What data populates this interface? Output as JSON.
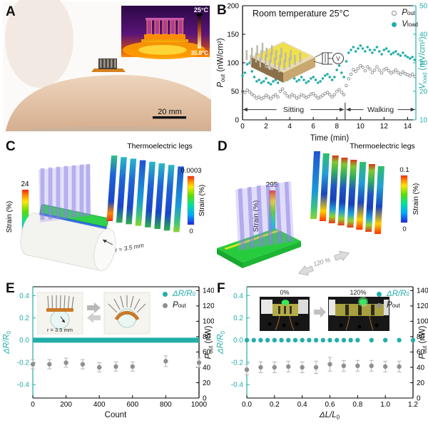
{
  "colors": {
    "accent_teal": "#23aea8",
    "marker_gray": "#8b8b8b",
    "skin": "#e3c3a8",
    "green_substrate": "#2fd04a",
    "purple_fins": "#8d84e8",
    "thermal_orange": "#ff9d00"
  },
  "panel_a": {
    "label": "A",
    "scale_bar": "20 mm",
    "inset": {
      "temp_max_label": "25°C",
      "temp_min_label": "35.8°C"
    }
  },
  "panel_b": {
    "label": "B",
    "title": "Room temperature 25°C",
    "xlabel": "Time (min)",
    "ylabel_left": {
      "sym": "P",
      "sub": "out",
      "unit": " (nW/cm²)"
    },
    "ylabel_right": {
      "sym": "V",
      "sub": "load",
      "unit": " (mV/cm²)"
    },
    "legend": [
      {
        "sym": "P",
        "sub": "out"
      },
      {
        "sym": "V",
        "sub": "load"
      }
    ],
    "inset": {
      "device_label": "Skin",
      "meter_label": "V"
    }
  },
  "panel_c": {
    "label": "C",
    "title": "Thermoelectric legs",
    "colorbar_left": {
      "max": "24",
      "min": "0",
      "label": "Strain (%)"
    },
    "colorbar_right": {
      "max": "0.0003",
      "min": "0",
      "label": "Strain (%)"
    },
    "annotation": "r = 3.5 mm"
  },
  "panel_d": {
    "label": "D",
    "title": "Thermoelectric legs",
    "colorbar_left": {
      "max": "295",
      "min": "0",
      "label": "Strain (%)"
    },
    "colorbar_right": {
      "max": "0.1",
      "min": "0",
      "label": "Strain (%)"
    },
    "annotation": "120 %"
  },
  "panel_e": {
    "label": "E",
    "xlabel": "Count",
    "ylabel_left": {
      "sym": "ΔR/R",
      "sub": "0"
    },
    "ylabel_right": {
      "sym": "P",
      "sub": "out",
      "unit": " (nW)"
    },
    "legend": [
      {
        "sym": "ΔR/R",
        "sub": "0"
      },
      {
        "sym": "P",
        "sub": "out"
      }
    ],
    "inset": {
      "radius_label": "r = 3.5 mm"
    }
  },
  "panel_f": {
    "label": "F",
    "xlabel": {
      "sym": "ΔL/L",
      "sub": "0"
    },
    "ylabel_left": {
      "sym": "ΔR/R",
      "sub": "0"
    },
    "ylabel_right": {
      "sym": "P",
      "sub": "out",
      "unit": " (nW)"
    },
    "legend": [
      {
        "sym": "ΔR/R",
        "sub": "0"
      },
      {
        "sym": "P",
        "sub": "out"
      }
    ],
    "inset": {
      "left_label": "0%",
      "right_label": "120%"
    }
  },
  "chart_data": [
    {
      "panel": "B",
      "type": "scatter",
      "title": "Room temperature 25°C",
      "xlabel": "Time (min)",
      "x_range": [
        0,
        14.7
      ],
      "x_ticks": [
        0,
        2,
        4,
        6,
        8,
        10,
        12,
        14
      ],
      "ylabel_left": "Pout (nW/cm2)",
      "y_left_range": [
        0,
        200
      ],
      "y_left_ticks": [
        0,
        50,
        100,
        150,
        200
      ],
      "ylabel_right": "Vload (mV/cm2)",
      "y_right_range": [
        10,
        50
      ],
      "y_right_ticks": [
        10,
        20,
        30,
        40,
        50
      ],
      "region_arrow_y": 18,
      "region_divider_x": 8.7,
      "region_divider_top": 30,
      "regions": [
        {
          "label": "Sitting",
          "x0": 0.05,
          "x1": 8.6
        },
        {
          "label": "Walking",
          "x0": 8.8,
          "x1": 14.62
        }
      ],
      "x": [
        0,
        0.2,
        0.4,
        0.6,
        0.8,
        1,
        1.2,
        1.4,
        1.6,
        1.8,
        2,
        2.2,
        2.4,
        2.6,
        2.8,
        3,
        3.2,
        3.4,
        3.6,
        3.8,
        4,
        4.2,
        4.4,
        4.6,
        4.8,
        5,
        5.2,
        5.4,
        5.6,
        5.8,
        6,
        6.2,
        6.4,
        6.6,
        6.8,
        7,
        7.2,
        7.4,
        7.6,
        7.8,
        8,
        8.2,
        8.4,
        8.6,
        8.8,
        9,
        9.2,
        9.4,
        9.6,
        9.8,
        10,
        10.2,
        10.4,
        10.6,
        10.8,
        11,
        11.2,
        11.4,
        11.6,
        11.8,
        12,
        12.2,
        12.4,
        12.6,
        12.8,
        13,
        13.2,
        13.4,
        13.6,
        13.8,
        14,
        14.2,
        14.4,
        14.6
      ],
      "series": [
        {
          "name": "Pout",
          "axis": "left",
          "marker": "open-circle",
          "color": "#8b8b8b",
          "y": [
            50,
            48,
            52,
            49,
            45,
            42,
            38,
            40,
            37,
            39,
            43,
            40,
            37,
            41,
            44,
            40,
            50,
            54,
            47,
            42,
            40,
            44,
            42,
            38,
            40,
            44,
            42,
            39,
            41,
            45,
            46,
            42,
            38,
            40,
            43,
            46,
            48,
            44,
            40,
            44,
            50,
            53,
            48,
            44,
            60,
            72,
            80,
            88,
            85,
            90,
            95,
            92,
            86,
            93,
            89,
            83,
            87,
            93,
            87,
            82,
            88,
            90,
            86,
            82,
            84,
            87,
            83,
            80,
            84,
            81,
            79,
            77,
            80,
            76
          ]
        },
        {
          "name": "Vload",
          "axis": "right",
          "marker": "filled-circle",
          "color": "#23aea8",
          "y": [
            25.5,
            26.5,
            29.5,
            30,
            27,
            25,
            23.5,
            24,
            23,
            23.5,
            24.5,
            23,
            22.5,
            23.5,
            24,
            23,
            25.5,
            26.5,
            25,
            24,
            24.5,
            25.5,
            24.5,
            23.5,
            24,
            25,
            24,
            23,
            23.5,
            24.5,
            25,
            24,
            23,
            23.5,
            24.5,
            25.5,
            26,
            25,
            24,
            25,
            27.5,
            29,
            26.5,
            25,
            30.5,
            33.5,
            34.5,
            35.5,
            34,
            35,
            36,
            35,
            34,
            35.5,
            34.5,
            33.5,
            34.5,
            35.5,
            34,
            33,
            34.5,
            35,
            34,
            33,
            33.5,
            34,
            33,
            32.5,
            33.5,
            32.5,
            32,
            31.5,
            32,
            31
          ]
        }
      ]
    },
    {
      "panel": "E",
      "type": "scatter",
      "xlabel": "Count",
      "x_range": [
        0,
        1000
      ],
      "x_ticks": [
        0,
        200,
        400,
        600,
        800,
        1000
      ],
      "ylabel_left": "ΔR/R0",
      "y_left_range": [
        -0.52,
        0.48
      ],
      "y_left_ticks": [
        -0.4,
        -0.2,
        0,
        0.2,
        0.4
      ],
      "ylabel_right": "Pout (nW)",
      "y_right_range": [
        0,
        145
      ],
      "y_right_ticks": [
        0,
        20,
        40,
        60,
        80,
        100,
        120,
        140
      ],
      "series": [
        {
          "name": "ΔR/R0",
          "axis": "left",
          "marker": "band",
          "color": "#23aea8",
          "x": [
            0,
            1000
          ],
          "y_const": 0,
          "thickness_px": 7
        },
        {
          "name": "Pout",
          "axis": "right",
          "marker": "filled-circle",
          "color": "#8f8f8f",
          "errbar_color": "#b4b4b4",
          "x": [
            0,
            100,
            200,
            300,
            400,
            500,
            600,
            800,
            1000
          ],
          "y": [
            44,
            44,
            46,
            44,
            40,
            41,
            41,
            48,
            46
          ],
          "yerr": [
            6,
            6,
            6,
            6,
            6,
            6,
            6,
            7,
            6
          ]
        }
      ]
    },
    {
      "panel": "F",
      "type": "scatter",
      "xlabel": "ΔL/L0",
      "x_range": [
        0,
        1.2
      ],
      "x_ticks": [
        0,
        0.2,
        0.4,
        0.6,
        0.8,
        1,
        1.2
      ],
      "ylabel_left": "ΔR/R0",
      "y_left_range": [
        -0.52,
        0.48
      ],
      "y_left_ticks": [
        -0.4,
        -0.2,
        0,
        0.2,
        0.4
      ],
      "ylabel_right": "Pout (nW)",
      "y_right_range": [
        0,
        145
      ],
      "y_right_ticks": [
        0,
        20,
        40,
        60,
        80,
        100,
        120,
        140
      ],
      "series": [
        {
          "name": "ΔR/R0",
          "axis": "left",
          "marker": "filled-circle",
          "color": "#23aea8",
          "x": [
            0,
            0.05,
            0.1,
            0.15,
            0.2,
            0.25,
            0.3,
            0.35,
            0.4,
            0.45,
            0.5,
            0.55,
            0.6,
            0.65,
            0.7,
            0.75,
            0.8,
            0.9,
            1,
            1.1,
            1.2
          ],
          "y_const": 0
        },
        {
          "name": "Pout",
          "axis": "right",
          "marker": "filled-circle",
          "color": "#8f8f8f",
          "errbar_color": "#b4b4b4",
          "x": [
            0,
            0.1,
            0.2,
            0.3,
            0.4,
            0.5,
            0.6,
            0.7,
            0.8,
            0.9,
            1,
            1.1
          ],
          "y": [
            37,
            40,
            40,
            41,
            40,
            40,
            44,
            42,
            42,
            42,
            41,
            41
          ],
          "yerr": [
            7,
            7,
            7,
            7,
            7,
            8,
            9,
            7,
            7,
            7,
            7,
            7
          ]
        }
      ]
    }
  ]
}
